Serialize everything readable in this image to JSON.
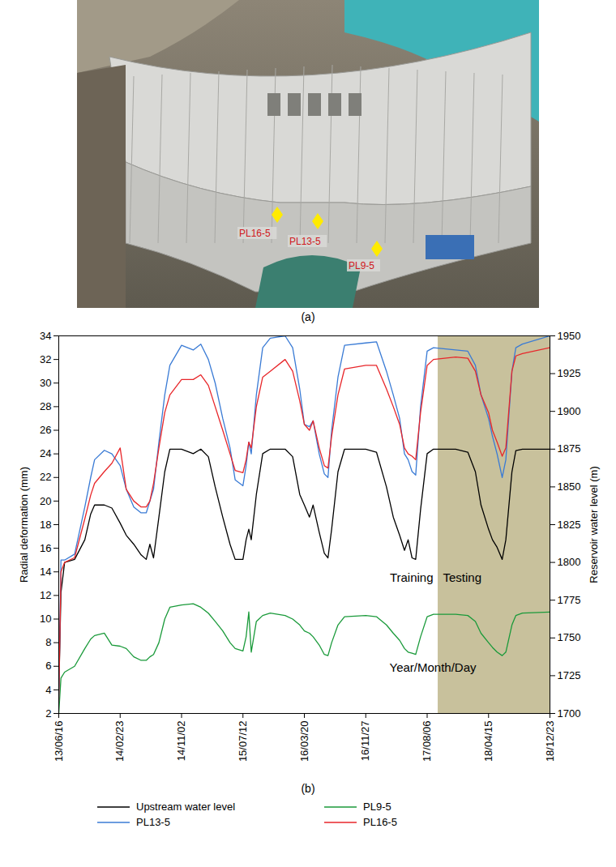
{
  "panel_a": {
    "label": "(a)",
    "type": "photo",
    "markers": [
      "PL16-5",
      "PL13-5",
      "PL9-5"
    ]
  },
  "chart_data": {
    "type": "line",
    "panel_label": "(b)",
    "x": [
      "2013-06-16",
      "2013-06-25",
      "2013-07-10",
      "2013-08-20",
      "2013-10-01",
      "2013-10-25",
      "2013-11-10",
      "2013-12-20",
      "2014-01-20",
      "2014-02-23",
      "2014-03-20",
      "2014-04-20",
      "2014-05-20",
      "2014-06-10",
      "2014-06-25",
      "2014-07-10",
      "2014-08-01",
      "2014-08-25",
      "2014-09-15",
      "2014-11-02",
      "2014-12-20",
      "2015-01-20",
      "2015-02-20",
      "2015-03-20",
      "2015-04-20",
      "2015-05-20",
      "2015-06-10",
      "2015-07-12",
      "2015-07-25",
      "2015-08-05",
      "2015-08-15",
      "2015-09-05",
      "2015-10-01",
      "2015-11-01",
      "2016-01-01",
      "2016-02-01",
      "2016-03-01",
      "2016-03-20",
      "2016-04-10",
      "2016-04-25",
      "2016-05-20",
      "2016-06-10",
      "2016-06-25",
      "2016-07-10",
      "2016-08-05",
      "2016-09-01",
      "2016-11-27",
      "2017-01-10",
      "2017-02-20",
      "2017-03-20",
      "2017-04-15",
      "2017-05-05",
      "2017-05-20",
      "2017-06-05",
      "2017-06-20",
      "2017-07-10",
      "2017-08-06",
      "2017-09-01",
      "2017-12-01",
      "2018-01-20",
      "2018-02-20",
      "2018-03-15",
      "2018-04-15",
      "2018-05-01",
      "2018-05-20",
      "2018-06-10",
      "2018-06-25",
      "2018-07-20",
      "2018-08-05",
      "2018-09-01",
      "2018-12-23"
    ],
    "xlim": [
      "2013-06-16",
      "2018-12-23"
    ],
    "xticks": [
      {
        "value": "2013-06-16",
        "label": "13/06/16"
      },
      {
        "value": "2014-02-23",
        "label": "14/02/23"
      },
      {
        "value": "2014-11-02",
        "label": "14/11/02"
      },
      {
        "value": "2015-07-12",
        "label": "15/07/12"
      },
      {
        "value": "2016-03-20",
        "label": "16/03/20"
      },
      {
        "value": "2016-11-27",
        "label": "16/11/27"
      },
      {
        "value": "2017-08-06",
        "label": "17/08/06"
      },
      {
        "value": "2018-04-15",
        "label": "18/04/15"
      },
      {
        "value": "2018-12-23",
        "label": "18/12/23"
      }
    ],
    "ylabel": "Radial deformation (mm)",
    "ylim": [
      2,
      34
    ],
    "yticks": [
      2,
      4,
      6,
      8,
      10,
      12,
      14,
      16,
      18,
      20,
      22,
      24,
      26,
      28,
      30,
      32,
      34
    ],
    "y2label": "Reservoir water level (m)",
    "y2lim": [
      1700,
      1950
    ],
    "y2ticks": [
      1700,
      1725,
      1750,
      1775,
      1800,
      1825,
      1850,
      1875,
      1900,
      1925,
      1950
    ],
    "series": [
      {
        "name": "Upstream water level",
        "color": "#000000",
        "axis": "y2",
        "values": [
          1712,
          1780,
          1800,
          1802,
          1815,
          1832,
          1838,
          1838,
          1836,
          1826,
          1818,
          1812,
          1805,
          1802,
          1812,
          1803,
          1830,
          1860,
          1875,
          1875,
          1872,
          1875,
          1870,
          1850,
          1830,
          1812,
          1802,
          1802,
          1815,
          1822,
          1815,
          1845,
          1872,
          1875,
          1875,
          1870,
          1845,
          1838,
          1830,
          1838,
          1820,
          1806,
          1803,
          1822,
          1860,
          1875,
          1875,
          1873,
          1850,
          1830,
          1818,
          1808,
          1815,
          1803,
          1802,
          1835,
          1872,
          1875,
          1875,
          1873,
          1860,
          1838,
          1822,
          1815,
          1810,
          1802,
          1815,
          1860,
          1874,
          1875,
          1875
        ]
      },
      {
        "name": "PL9-5",
        "color": "#1a9a3a",
        "values": [
          2,
          5,
          5.5,
          6,
          7.5,
          8.3,
          8.6,
          8.8,
          7.8,
          7.7,
          7.5,
          6.8,
          6.5,
          6.5,
          6.8,
          7,
          8,
          10,
          11,
          11.2,
          11.3,
          11,
          10.5,
          9.8,
          9,
          8,
          7.5,
          7.3,
          8.5,
          10.6,
          7.2,
          9.8,
          10.3,
          10.5,
          10.3,
          10,
          9.5,
          9,
          8.8,
          8.5,
          7.8,
          7,
          6.9,
          8,
          9.5,
          10.2,
          10.3,
          10.2,
          9.5,
          8.8,
          8.2,
          7.5,
          7.2,
          7.1,
          7,
          8.5,
          10.2,
          10.4,
          10.4,
          10.3,
          9.8,
          8.8,
          8,
          7.6,
          7.2,
          6.9,
          7.2,
          9.5,
          10.3,
          10.5,
          10.6
        ]
      },
      {
        "name": "PL13-5",
        "color": "#3a7bd5",
        "values": [
          3,
          15,
          15,
          15.5,
          19.5,
          22,
          23.5,
          24.3,
          24,
          23,
          21,
          19.5,
          19,
          19,
          20,
          21,
          25,
          29,
          31.5,
          33.2,
          32.8,
          33.3,
          32,
          30,
          27,
          24.5,
          21.8,
          21.3,
          23,
          25,
          24,
          29,
          33,
          33.8,
          34,
          33,
          29.5,
          26.5,
          26.3,
          26.8,
          24,
          22.3,
          22,
          26,
          30.5,
          33.2,
          33.4,
          33.5,
          31,
          29,
          27,
          24,
          23.5,
          22.5,
          22.2,
          28,
          32.7,
          33,
          32.8,
          32.7,
          31.5,
          29,
          27,
          25.5,
          24,
          22,
          23.5,
          31,
          33,
          33.3,
          34
        ]
      },
      {
        "name": "PL16-5",
        "color": "#e8262a",
        "values": [
          3,
          14,
          14.8,
          15.2,
          18.5,
          20.5,
          21.5,
          22.5,
          23.2,
          24.5,
          21,
          20,
          19.5,
          19.5,
          20,
          21.5,
          24.5,
          27.5,
          29,
          30.3,
          30.3,
          30.7,
          29.8,
          28,
          26,
          24,
          22.6,
          22.4,
          23.5,
          25,
          24.5,
          28,
          30.5,
          31,
          32,
          31,
          28.5,
          26.5,
          26,
          26.8,
          24.5,
          23,
          22.8,
          25.5,
          29,
          31.2,
          31.5,
          31.5,
          29.5,
          28,
          26.5,
          24.5,
          24,
          23.8,
          23.5,
          27.5,
          31.5,
          32,
          32.2,
          32.1,
          31,
          29,
          27.5,
          26,
          25,
          23.8,
          24.5,
          31,
          32.3,
          32.5,
          33
        ]
      }
    ],
    "shaded_region": {
      "start": "2017-09-20",
      "end": "2018-12-23",
      "color": "#c8c19c"
    },
    "annotations": [
      "Training",
      "Testing",
      "Year/Month/Day"
    ],
    "legend": "bottom",
    "grid": false
  }
}
